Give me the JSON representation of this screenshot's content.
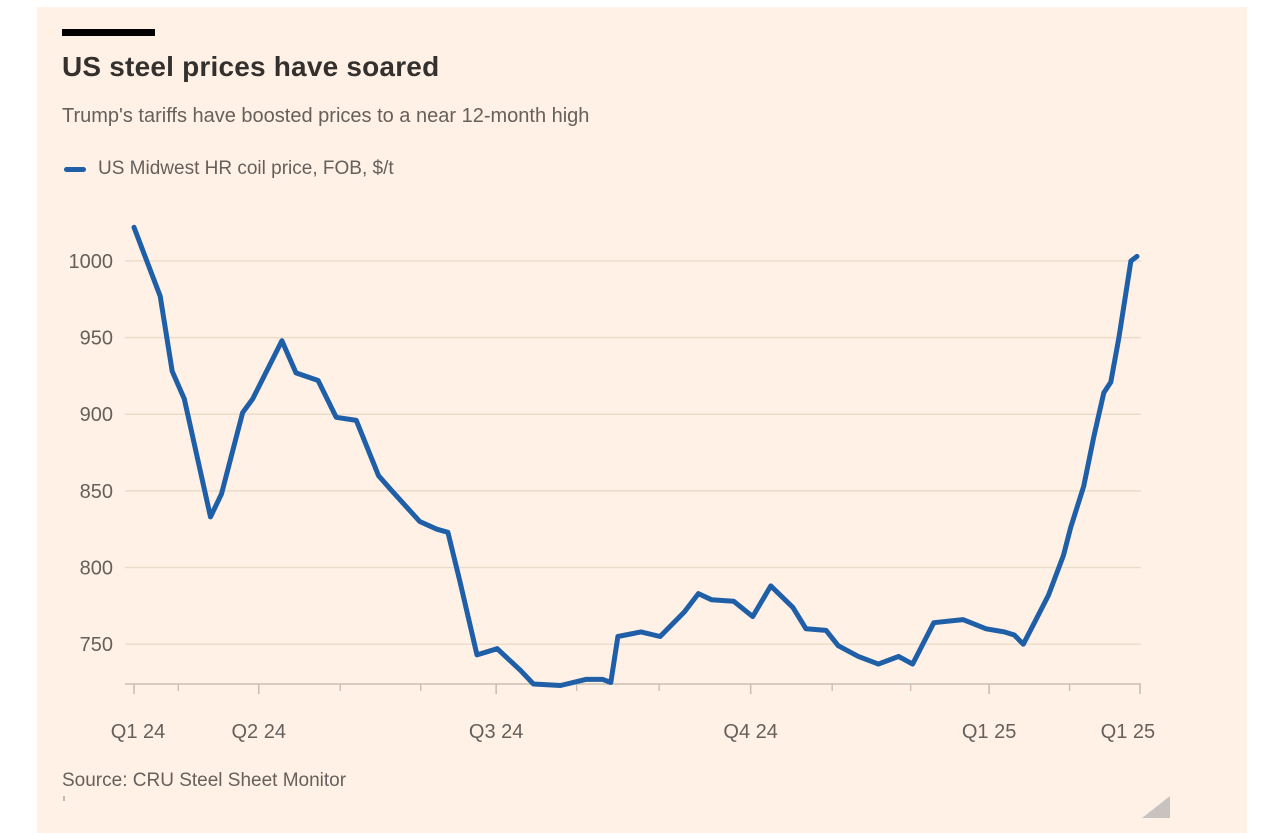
{
  "card": {
    "title": "US steel prices have soared",
    "subtitle": "Trump's tariffs have boosted prices to a near 12-month high",
    "source": "Source: CRU Steel Sheet Monitor"
  },
  "legend": {
    "label": "US Midwest HR coil price, FOB, $/t",
    "swatch_color": "#1F5FA8"
  },
  "colors": {
    "page_background": "#FFFFFF",
    "card_background": "#FFF1E5",
    "accent_bar": "#000000",
    "title_text": "#33302E",
    "muted_text": "#66605C",
    "line": "#1F5FA8",
    "gridline": "#EADCCB",
    "axis_line": "#CBBFB3",
    "resize_handle": "#C8C3BE"
  },
  "chart_data": {
    "type": "line",
    "title": "US steel prices have soared",
    "subtitle": "Trump's tariffs have boosted prices to a near 12-month high",
    "ylabel": "US Midwest HR coil price, FOB, $/t",
    "xlabel": "",
    "source": "Source: CRU Steel Sheet Monitor",
    "legend_position": "top-left",
    "grid": "horizontal",
    "y_axis": {
      "ticks": [
        750,
        800,
        850,
        900,
        950,
        1000
      ],
      "plot_range": [
        724,
        1030
      ]
    },
    "x_axis": {
      "labels": [
        {
          "label": "Q1 24",
          "f": 0.004
        },
        {
          "label": "Q2 24",
          "f": 0.124
        },
        {
          "label": "Q3 24",
          "f": 0.36
        },
        {
          "label": "Q4 24",
          "f": 0.613
        },
        {
          "label": "Q1 25",
          "f": 0.85
        },
        {
          "label": "Q1 25",
          "f": 0.988
        }
      ],
      "major_tick_f": [
        0.0,
        0.124,
        0.36,
        0.613,
        0.85,
        1.0
      ],
      "minor_tick_f": [
        0.044,
        0.205,
        0.285,
        0.44,
        0.522,
        0.694,
        0.772,
        0.93
      ]
    },
    "series": [
      {
        "name": "US Midwest HR coil price, FOB, $/t",
        "color": "#1F5FA8",
        "points": [
          [
            0.0,
            1022
          ],
          [
            0.026,
            977
          ],
          [
            0.038,
            928
          ],
          [
            0.05,
            910
          ],
          [
            0.076,
            833
          ],
          [
            0.087,
            848
          ],
          [
            0.108,
            901
          ],
          [
            0.118,
            910
          ],
          [
            0.147,
            948
          ],
          [
            0.161,
            927
          ],
          [
            0.183,
            922
          ],
          [
            0.201,
            898
          ],
          [
            0.221,
            896
          ],
          [
            0.243,
            860
          ],
          [
            0.255,
            851
          ],
          [
            0.284,
            830
          ],
          [
            0.301,
            825
          ],
          [
            0.312,
            823
          ],
          [
            0.324,
            791
          ],
          [
            0.341,
            743
          ],
          [
            0.361,
            747
          ],
          [
            0.384,
            733
          ],
          [
            0.397,
            724
          ],
          [
            0.424,
            723
          ],
          [
            0.449,
            727
          ],
          [
            0.466,
            727
          ],
          [
            0.474,
            725
          ],
          [
            0.481,
            755
          ],
          [
            0.504,
            758
          ],
          [
            0.523,
            755
          ],
          [
            0.547,
            771
          ],
          [
            0.561,
            783
          ],
          [
            0.574,
            779
          ],
          [
            0.596,
            778
          ],
          [
            0.615,
            768
          ],
          [
            0.633,
            788
          ],
          [
            0.655,
            774
          ],
          [
            0.668,
            760
          ],
          [
            0.688,
            759
          ],
          [
            0.7,
            749
          ],
          [
            0.72,
            742
          ],
          [
            0.74,
            737
          ],
          [
            0.76,
            742
          ],
          [
            0.774,
            737
          ],
          [
            0.795,
            764
          ],
          [
            0.824,
            766
          ],
          [
            0.847,
            760
          ],
          [
            0.865,
            758
          ],
          [
            0.875,
            756
          ],
          [
            0.884,
            750
          ],
          [
            0.895,
            764
          ],
          [
            0.909,
            782
          ],
          [
            0.924,
            808
          ],
          [
            0.931,
            826
          ],
          [
            0.944,
            853
          ],
          [
            0.954,
            885
          ],
          [
            0.964,
            914
          ],
          [
            0.971,
            921
          ],
          [
            0.979,
            950
          ],
          [
            0.991,
            1000
          ],
          [
            0.997,
            1003
          ]
        ]
      }
    ]
  }
}
